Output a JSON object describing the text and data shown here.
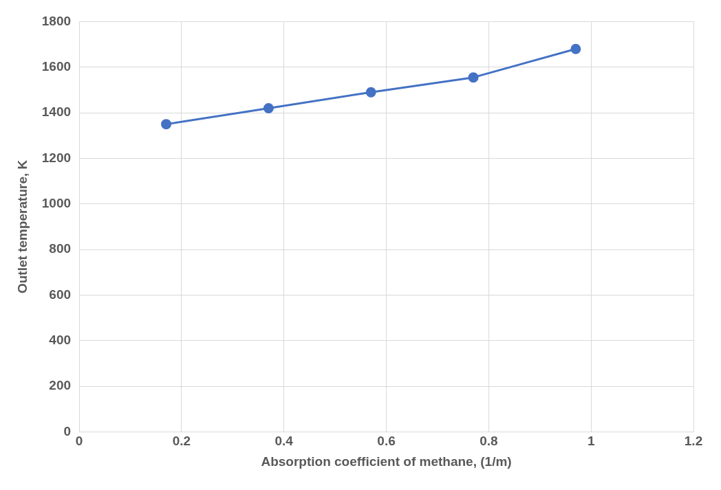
{
  "chart_data": {
    "type": "line",
    "xlabel": "Absorption coefficient of methane, (1/m)",
    "ylabel": "Outlet temperature, K",
    "x": [
      0.17,
      0.37,
      0.57,
      0.77,
      0.97
    ],
    "series": [
      {
        "color": "#4472c4",
        "values": [
          1350,
          1420,
          1490,
          1555,
          1680
        ]
      }
    ],
    "xlim": [
      0,
      1.2
    ],
    "xticks": [
      0,
      0.2,
      0.4,
      0.6,
      0.8,
      1,
      1.2
    ],
    "ylim": [
      0,
      1800
    ],
    "yticks": [
      0,
      200,
      400,
      600,
      800,
      1000,
      1200,
      1400,
      1600,
      1800
    ],
    "grid": true,
    "legend": false,
    "marker": "circle",
    "line_style": "solid"
  }
}
